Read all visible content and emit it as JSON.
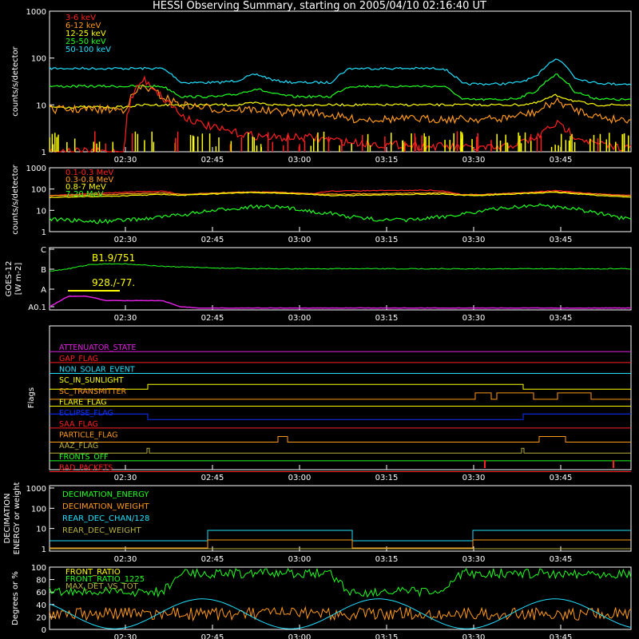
{
  "title": "HESSI Observing Summary, starting on 2005/04/10 02:16:40 UT",
  "time_ticks": [
    "02:30",
    "02:45",
    "03:00",
    "03:15",
    "03:30",
    "03:45"
  ],
  "colors": {
    "red": "#ff2020",
    "orange": "#ff9a1a",
    "yellow": "#ffff00",
    "green": "#20ff20",
    "cyan": "#20e0ff",
    "blue": "#1030ff",
    "magenta": "#e020e0",
    "olive": "#b8b040",
    "white": "#ffffff"
  },
  "chart_data": [
    {
      "type": "line",
      "ylabel": "counts/s/detector",
      "yscale": "log",
      "ylim": [
        1,
        1000
      ],
      "yticks": [
        "1",
        "10",
        "100",
        "1000"
      ],
      "legend": [
        "3-6 keV",
        "6-12 keV",
        "12-25 keV",
        "25-50 keV",
        "50-100 keV"
      ],
      "series": [
        {
          "name": "50-100 keV",
          "values": [
            60,
            60,
            60,
            60,
            60,
            60,
            60,
            30,
            30,
            30,
            33,
            45,
            33,
            30,
            30,
            30,
            60,
            60,
            60,
            60,
            60,
            60,
            28,
            28,
            28,
            30,
            40,
            100,
            38,
            30,
            28,
            28
          ]
        },
        {
          "name": "25-50 keV",
          "values": [
            25,
            25,
            25,
            25,
            25,
            25,
            25,
            15,
            15,
            15,
            17,
            22,
            17,
            15,
            15,
            15,
            25,
            25,
            25,
            25,
            25,
            25,
            13,
            13,
            13,
            14,
            20,
            45,
            19,
            14,
            13,
            13
          ]
        },
        {
          "name": "12-25 keV",
          "values": [
            9,
            9,
            9,
            9,
            9,
            10,
            10,
            10,
            10,
            10,
            10,
            11,
            10,
            10,
            10,
            10,
            10,
            10,
            10,
            10,
            10,
            10,
            10,
            10,
            10,
            10,
            11,
            16,
            12,
            10,
            10,
            10
          ]
        },
        {
          "name": "6-12 keV",
          "values": [
            8,
            8,
            8,
            8,
            8,
            25,
            15,
            10,
            9,
            8,
            8,
            8,
            7,
            7,
            7,
            6,
            5,
            5,
            5,
            5,
            5,
            5,
            5,
            5,
            5,
            6,
            7,
            12,
            8,
            6,
            5,
            5
          ]
        },
        {
          "name": "3-6 keV",
          "values": [
            1,
            1,
            1,
            1,
            1,
            35,
            14,
            6,
            4,
            3,
            2.5,
            2.2,
            2,
            2,
            2,
            1.8,
            1.6,
            1.5,
            1.4,
            1.4,
            1.3,
            1.3,
            1.2,
            1.2,
            1.2,
            1.5,
            2,
            4,
            2.2,
            1.5,
            1.3,
            1.2
          ]
        }
      ]
    },
    {
      "type": "line",
      "ylabel": "counts/s/detector",
      "yscale": "log",
      "ylim": [
        1,
        1000
      ],
      "yticks": [
        "1",
        "10",
        "100",
        "1000"
      ],
      "legend": [
        "0.1-0.3 MeV",
        "0.3-0.8 MeV",
        "0.8-7 MeV",
        "7-20 MeV"
      ],
      "series": [
        {
          "name": "0.1-0.3 MeV",
          "values": [
            50,
            55,
            60,
            65,
            70,
            75,
            80,
            55,
            60,
            65,
            70,
            72,
            70,
            65,
            60,
            80,
            82,
            84,
            85,
            86,
            88,
            80,
            55,
            55,
            60,
            65,
            75,
            85,
            70,
            60,
            55,
            50
          ]
        },
        {
          "name": "0.3-0.8 MeV",
          "values": [
            48,
            50,
            52,
            55,
            58,
            62,
            66,
            55,
            60,
            65,
            70,
            72,
            70,
            65,
            60,
            58,
            58,
            60,
            62,
            64,
            66,
            66,
            55,
            55,
            60,
            65,
            70,
            75,
            65,
            58,
            52,
            48
          ]
        },
        {
          "name": "0.8-7 MeV",
          "values": [
            40,
            42,
            44,
            46,
            48,
            52,
            56,
            50,
            55,
            60,
            65,
            68,
            65,
            60,
            55,
            50,
            50,
            52,
            54,
            56,
            58,
            58,
            50,
            50,
            55,
            60,
            65,
            70,
            60,
            52,
            46,
            42
          ]
        },
        {
          "name": "7-20 MeV",
          "values": [
            4,
            3.5,
            3,
            3,
            3.5,
            4,
            5,
            6,
            8,
            10,
            13,
            15,
            14,
            12,
            9,
            7,
            5,
            4,
            3.5,
            3.5,
            4,
            5,
            7,
            9,
            12,
            15,
            17,
            15,
            12,
            8,
            5,
            3.5
          ]
        }
      ]
    },
    {
      "type": "line",
      "ylabel": "GOES-12 [W m-2]",
      "yticks": [
        "A0.1",
        "A",
        "B",
        "C"
      ],
      "annotations": [
        "B1.9/751",
        "928./-77."
      ],
      "series": [
        {
          "name": "GOES low",
          "values": [
            0.62,
            0.66,
            0.72,
            0.74,
            0.74,
            0.72,
            0.7,
            0.69,
            0.68,
            0.67,
            0.67,
            0.66,
            0.66,
            0.66,
            0.66,
            0.66,
            0.66,
            0.66,
            0.66,
            0.66,
            0.66,
            0.66,
            0.66,
            0.66,
            0.66,
            0.66,
            0.66,
            0.66,
            0.66,
            0.66,
            0.66,
            0.66
          ]
        },
        {
          "name": "GOES high",
          "values": [
            0.05,
            0.22,
            0.22,
            0.15,
            0.15,
            0.15,
            0.15,
            0.05,
            0.03,
            0.03,
            0.03,
            0.03,
            0.03,
            0.03,
            0.03,
            0.03,
            0.03,
            0.03,
            0.03,
            0.03,
            0.03,
            0.03,
            0.03,
            0.03,
            0.03,
            0.03,
            0.03,
            0.03,
            0.03,
            0.03,
            0.03,
            0.03
          ]
        }
      ]
    },
    {
      "type": "line",
      "ylabel": "Flags",
      "flags": [
        "ATTENUATOR_STATE",
        "GAP_FLAG",
        "NON_SOLAR_EVENT",
        "SC_IN_SUNLIGHT",
        "SC_TRANSMITTER",
        "FLARE_FLAG",
        "ECLIPSE_FLAG",
        "SAA_FLAG",
        "PARTICLE_FLAG",
        "AAZ_FLAG",
        "FRONTS_OFF",
        "BAD_PACKETS"
      ]
    },
    {
      "type": "line",
      "ylabel": "DECIMATION ENERGY or weight",
      "yscale": "log",
      "ylim": [
        1,
        1000
      ],
      "yticks": [
        "1",
        "10",
        "100",
        "1000"
      ],
      "legend": [
        "DECIMATION_ENERGY",
        "DECIMATION_WEIGHT",
        "REAR_DEC_CHAN/128",
        "REAR_DEC_WEIGHT"
      ]
    },
    {
      "type": "line",
      "ylabel": "Degrees or %",
      "ylim": [
        0,
        100
      ],
      "yticks": [
        "0",
        "20",
        "40",
        "60",
        "80",
        "100"
      ],
      "legend": [
        "FRONT_RATIO",
        "FRONT_RATIO_1225",
        "MAX_DET_VS_TOT"
      ]
    }
  ]
}
